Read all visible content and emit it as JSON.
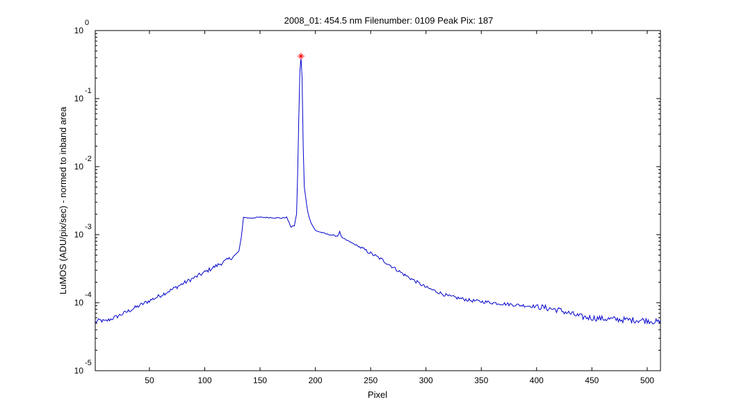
{
  "chart_data": {
    "type": "line",
    "title": "2008_01: 454.5 nm  Filenumber: 0109 Peak Pix: 187",
    "xlabel": "Pixel",
    "ylabel": "LuMOS (ADU/pix/sec) - normed to inband area",
    "xlim": [
      1,
      512
    ],
    "ylim": [
      1e-05,
      1
    ],
    "yscale": "log",
    "grid": false,
    "x_ticks": [
      50,
      100,
      150,
      200,
      250,
      300,
      350,
      400,
      450,
      500
    ],
    "y_ticks": [
      {
        "value": 1e-05,
        "base": "10",
        "exp": "-5"
      },
      {
        "value": 0.0001,
        "base": "10",
        "exp": "-4"
      },
      {
        "value": 0.001,
        "base": "10",
        "exp": "-3"
      },
      {
        "value": 0.01,
        "base": "10",
        "exp": "-2"
      },
      {
        "value": 0.1,
        "base": "10",
        "exp": "-1"
      },
      {
        "value": 1,
        "base": "10",
        "exp": "0"
      }
    ],
    "series": [
      {
        "color": "#0000cc",
        "points": [
          [
            1,
            5.2e-05
          ],
          [
            5,
            5.5e-05
          ],
          [
            10,
            5.3e-05
          ],
          [
            20,
            6.2e-05
          ],
          [
            30,
            7.4e-05
          ],
          [
            40,
            8.9e-05
          ],
          [
            50,
            0.000107
          ],
          [
            60,
            0.000128
          ],
          [
            70,
            0.000155
          ],
          [
            80,
            0.00019
          ],
          [
            90,
            0.00023
          ],
          [
            100,
            0.00028
          ],
          [
            110,
            0.000345
          ],
          [
            120,
            0.00042
          ],
          [
            128,
            0.0005
          ],
          [
            131,
            0.00058
          ],
          [
            133,
            0.0009
          ],
          [
            135,
            0.0018
          ],
          [
            140,
            0.00175
          ],
          [
            150,
            0.0018
          ],
          [
            160,
            0.00178
          ],
          [
            170,
            0.00175
          ],
          [
            174,
            0.0018
          ],
          [
            178,
            0.0013
          ],
          [
            181,
            0.00135
          ],
          [
            183,
            0.002
          ],
          [
            184,
            0.008
          ],
          [
            185,
            0.05
          ],
          [
            186,
            0.25
          ],
          [
            187,
            0.4
          ],
          [
            188,
            0.2
          ],
          [
            189,
            0.02
          ],
          [
            190,
            0.005
          ],
          [
            193,
            0.0022
          ],
          [
            196,
            0.0015
          ],
          [
            200,
            0.00115
          ],
          [
            210,
            0.00102
          ],
          [
            220,
            0.00095
          ],
          [
            222,
            0.0011
          ],
          [
            224,
            0.0009
          ],
          [
            240,
            0.00066
          ],
          [
            260,
            0.00043
          ],
          [
            280,
            0.00026
          ],
          [
            300,
            0.000168
          ],
          [
            320,
            0.000125
          ],
          [
            340,
            0.000108
          ],
          [
            360,
            0.0001
          ],
          [
            380,
            9.3e-05
          ],
          [
            400,
            8.8e-05
          ],
          [
            420,
            7.8e-05
          ],
          [
            440,
            6.2e-05
          ],
          [
            460,
            5.8e-05
          ],
          [
            480,
            5.6e-05
          ],
          [
            500,
            5.5e-05
          ],
          [
            512,
            5.1e-05
          ]
        ],
        "peak": {
          "x": 187,
          "y": 0.42,
          "color": "#ff0000"
        }
      }
    ]
  }
}
